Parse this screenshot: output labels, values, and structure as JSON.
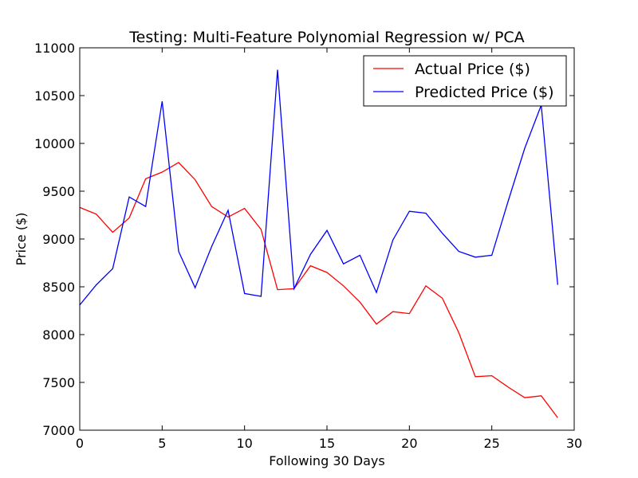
{
  "chart_data": {
    "type": "line",
    "title": "Testing: Multi-Feature Polynomial Regression w/ PCA",
    "xlabel": "Following 30 Days",
    "ylabel": "Price ($)",
    "xlim": [
      0,
      30
    ],
    "ylim": [
      7000,
      11000
    ],
    "xticks": [
      0,
      5,
      10,
      15,
      20,
      25,
      30
    ],
    "yticks": [
      7000,
      7500,
      8000,
      8500,
      9000,
      9500,
      10000,
      10500,
      11000
    ],
    "grid": false,
    "legend_position": "top-right",
    "x": [
      0,
      1,
      2,
      3,
      4,
      5,
      6,
      7,
      8,
      9,
      10,
      11,
      12,
      13,
      14,
      15,
      16,
      17,
      18,
      19,
      20,
      21,
      22,
      23,
      24,
      25,
      26,
      27,
      28,
      29
    ],
    "series": [
      {
        "name": "Actual Price ($)",
        "color": "#ff0000",
        "values": [
          9330,
          9260,
          9070,
          9220,
          9630,
          9700,
          9800,
          9620,
          9340,
          9230,
          9320,
          9100,
          8470,
          8480,
          8720,
          8650,
          8510,
          8340,
          8110,
          8240,
          8220,
          8510,
          8380,
          8020,
          7560,
          7570,
          7450,
          7340,
          7360,
          7130
        ]
      },
      {
        "name": "Predicted Price ($)",
        "color": "#0000ff",
        "values": [
          8310,
          8520,
          8690,
          9440,
          9340,
          10440,
          8870,
          8490,
          8920,
          9300,
          8430,
          8400,
          10770,
          8480,
          8840,
          9090,
          8740,
          8830,
          8440,
          8990,
          9290,
          9270,
          9060,
          8870,
          8810,
          8830,
          9400,
          9950,
          10400,
          8520
        ]
      }
    ]
  }
}
